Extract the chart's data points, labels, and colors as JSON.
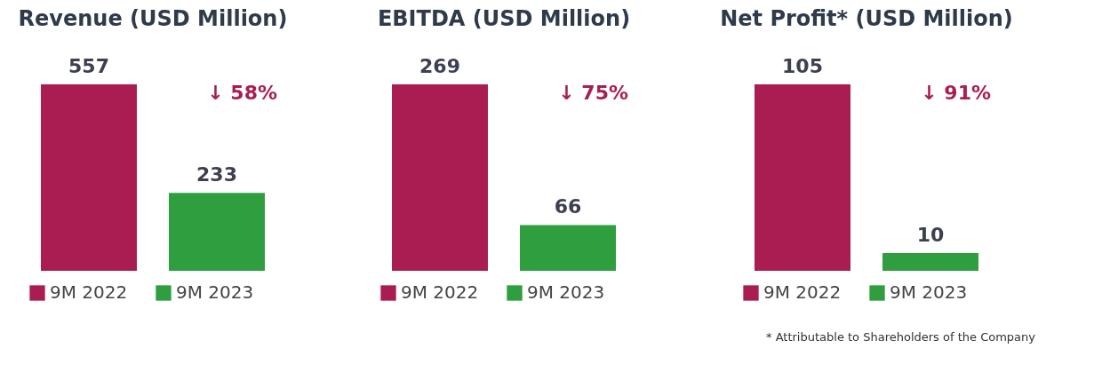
{
  "chart_data": [
    {
      "type": "bar",
      "title": "Revenue (USD Million)",
      "categories": [
        null
      ],
      "series": [
        {
          "name": "9M 2022",
          "color": "#a91d52",
          "values": [
            557
          ]
        },
        {
          "name": "9M 2023",
          "color": "#2e9e3e",
          "values": [
            233
          ]
        }
      ],
      "data_labels": true,
      "legend": "bottom",
      "annotations": [
        "↓ 58%"
      ]
    },
    {
      "type": "bar",
      "title": "EBITDA (USD Million)",
      "categories": [
        null
      ],
      "series": [
        {
          "name": "9M 2022",
          "color": "#a91d52",
          "values": [
            269
          ]
        },
        {
          "name": "9M 2023",
          "color": "#2e9e3e",
          "values": [
            66
          ]
        }
      ],
      "data_labels": true,
      "legend": "bottom",
      "annotations": [
        "↓ 75%"
      ]
    },
    {
      "type": "bar",
      "title": "Net Profit* (USD Million)",
      "categories": [
        null
      ],
      "series": [
        {
          "name": "9M 2022",
          "color": "#a91d52",
          "values": [
            105
          ]
        },
        {
          "name": "9M 2023",
          "color": "#2e9e3e",
          "values": [
            10
          ]
        }
      ],
      "data_labels": true,
      "legend": "bottom",
      "annotations": [
        "↓ 91%",
        "* Attributable to Shareholders of the Company"
      ]
    }
  ]
}
